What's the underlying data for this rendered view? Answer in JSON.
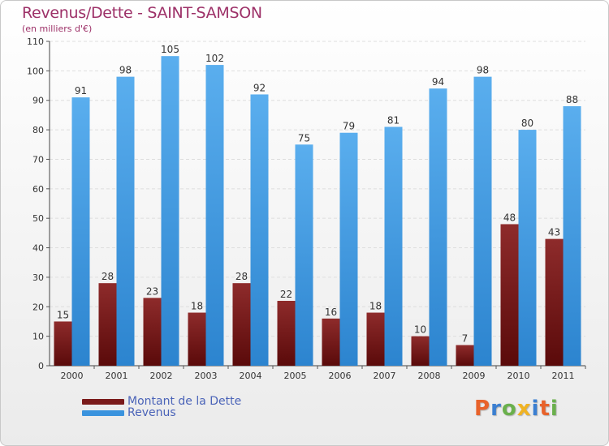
{
  "chart_data": {
    "type": "bar",
    "title": "Revenus/Dette - SAINT-SAMSON",
    "subtitle": "(en milliers d'€)",
    "categories": [
      "2000",
      "2001",
      "2002",
      "2003",
      "2004",
      "2005",
      "2006",
      "2007",
      "2008",
      "2009",
      "2010",
      "2011"
    ],
    "series": [
      {
        "name": "Montant de la Dette",
        "color": "#7a1a1a",
        "values": [
          15,
          28,
          23,
          18,
          28,
          22,
          16,
          18,
          10,
          7,
          48,
          43
        ]
      },
      {
        "name": "Revenus",
        "color": "#3a93de",
        "values": [
          91,
          98,
          105,
          102,
          92,
          75,
          79,
          81,
          94,
          98,
          80,
          88
        ]
      }
    ],
    "ylim": [
      0,
      110
    ],
    "yticks": [
      0,
      10,
      20,
      30,
      40,
      50,
      60,
      70,
      80,
      90,
      100,
      110
    ],
    "grid": true,
    "data_labels": true,
    "legend_position": "bottom-left"
  },
  "logo_text": "Proxiti",
  "logo_colors": [
    "#e8622a",
    "#3b7fd1",
    "#6ab04c",
    "#f0b323",
    "#3b7fd1",
    "#e8622a",
    "#6ab04c"
  ]
}
